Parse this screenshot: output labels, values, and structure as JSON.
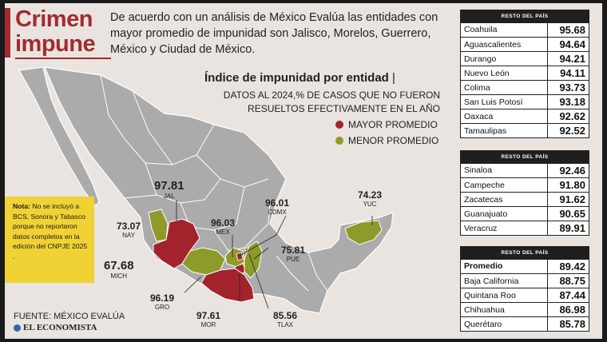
{
  "title_line1": "Crimen",
  "title_line2": "impune",
  "intro": "De acuerdo con un análisis de México Evalúa las entidades con mayor promedio de impunidad son Jalisco, Morelos, Guerrero, México y Ciudad de México.",
  "index_title": "Índice de impunidad por entidad",
  "index_sep": "|",
  "index_subtitle": "DATOS AL 2024,% DE CASOS QUE NO FUERON RESUELTOS EFECTIVAMENTE EN EL AÑO",
  "legend": [
    {
      "label": "MAYOR PROMEDIO",
      "color": "#a3232d"
    },
    {
      "label": "MENOR PROMEDIO",
      "color": "#8e9a2a"
    }
  ],
  "map_labels": [
    {
      "value": "97.81",
      "code": "JAL"
    },
    {
      "value": "73.07",
      "code": "NAY"
    },
    {
      "value": "67.68",
      "code": "MICH"
    },
    {
      "value": "96.19",
      "code": "GRO"
    },
    {
      "value": "97.61",
      "code": "MOR"
    },
    {
      "value": "96.03",
      "code": "MEX"
    },
    {
      "value": "96.01",
      "code": "CDMX"
    },
    {
      "value": "75.81",
      "code": "PUE"
    },
    {
      "value": "85.56",
      "code": "TLAX"
    },
    {
      "value": "74.23",
      "code": "YUC"
    }
  ],
  "note_label": "Nota:",
  "note_text": "No se incluyó a BCS, Sonora y Tabasco porque no reportaron datos completos en la edición del CNPJE 2025 .",
  "source": "FUENTE: MÉXICO EVALÚA",
  "brand": "EL ECONOMISTA",
  "tables": [
    {
      "header": "RESTO DEL PAÍS",
      "rows": [
        {
          "name": "Coahuila",
          "value": "95.68"
        },
        {
          "name": "Aguascalientes",
          "value": "94.64"
        },
        {
          "name": "Durango",
          "value": "94.21"
        },
        {
          "name": "Nuevo León",
          "value": "94.11"
        },
        {
          "name": "Colima",
          "value": "93.73"
        },
        {
          "name": "San Luis Potosí",
          "value": "93.18"
        },
        {
          "name": "Oaxaca",
          "value": "92.62"
        },
        {
          "name": "Tamaulipas",
          "value": "92.52"
        }
      ]
    },
    {
      "header": "RESTO DEL PAÍS",
      "rows": [
        {
          "name": "Sinaloa",
          "value": "92.46"
        },
        {
          "name": "Campeche",
          "value": "91.80"
        },
        {
          "name": "Zacatecas",
          "value": "91.62"
        },
        {
          "name": "Guanajuato",
          "value": "90.65"
        },
        {
          "name": "Veracruz",
          "value": "89.91"
        }
      ]
    },
    {
      "header": "RESTO DEL PAÍS",
      "rows": [
        {
          "name": "Promedio",
          "value": "89.42"
        },
        {
          "name": "Baja California",
          "value": "88.75"
        },
        {
          "name": "Quintana Roo",
          "value": "87.44"
        },
        {
          "name": "Chihuahua",
          "value": "86.98"
        },
        {
          "name": "Querétaro",
          "value": "85.78"
        }
      ]
    }
  ]
}
